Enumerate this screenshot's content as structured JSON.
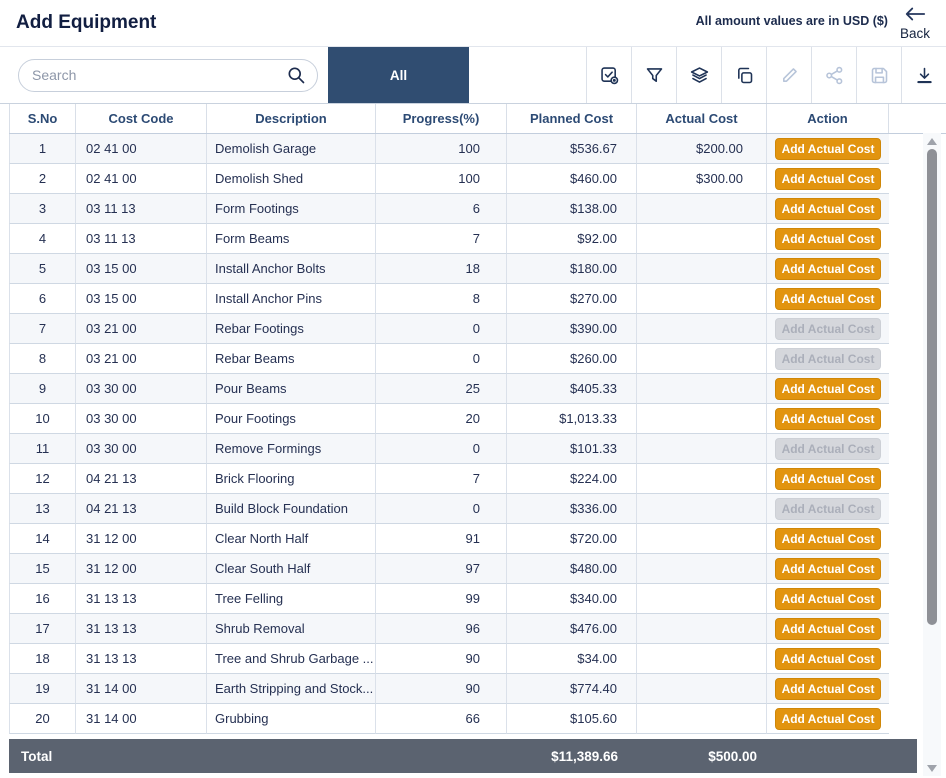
{
  "titlebar": {
    "title": "Add Equipment",
    "usd_note": "All amount values are in USD ($)",
    "back_label": "Back"
  },
  "toolbar": {
    "search_placeholder": "Search",
    "search_value": "",
    "tab_all_label": "All",
    "icons": [
      {
        "name": "select-check-icon",
        "enabled": true
      },
      {
        "name": "filter-icon",
        "enabled": true
      },
      {
        "name": "layers-icon",
        "enabled": true
      },
      {
        "name": "copy-icon",
        "enabled": true
      },
      {
        "name": "edit-icon",
        "enabled": false
      },
      {
        "name": "share-icon",
        "enabled": false
      },
      {
        "name": "save-icon",
        "enabled": false
      },
      {
        "name": "download-icon",
        "enabled": true
      }
    ]
  },
  "table": {
    "columns": [
      "S.No",
      "Cost Code",
      "Description",
      "Progress(%)",
      "Planned Cost",
      "Actual Cost",
      "Action"
    ],
    "action_button_label": "Add Actual Cost",
    "rows": [
      {
        "sno": "1",
        "cost_code": "02 41 00",
        "description": "Demolish Garage",
        "progress": "100",
        "planned_cost": "$536.67",
        "actual_cost": "$200.00",
        "action_enabled": true
      },
      {
        "sno": "2",
        "cost_code": "02 41 00",
        "description": "Demolish Shed",
        "progress": "100",
        "planned_cost": "$460.00",
        "actual_cost": "$300.00",
        "action_enabled": true
      },
      {
        "sno": "3",
        "cost_code": "03 11 13",
        "description": "Form Footings",
        "progress": "6",
        "planned_cost": "$138.00",
        "actual_cost": "",
        "action_enabled": true
      },
      {
        "sno": "4",
        "cost_code": "03 11 13",
        "description": "Form Beams",
        "progress": "7",
        "planned_cost": "$92.00",
        "actual_cost": "",
        "action_enabled": true
      },
      {
        "sno": "5",
        "cost_code": "03 15 00",
        "description": "Install Anchor Bolts",
        "progress": "18",
        "planned_cost": "$180.00",
        "actual_cost": "",
        "action_enabled": true
      },
      {
        "sno": "6",
        "cost_code": "03 15 00",
        "description": "Install Anchor Pins",
        "progress": "8",
        "planned_cost": "$270.00",
        "actual_cost": "",
        "action_enabled": true
      },
      {
        "sno": "7",
        "cost_code": "03 21 00",
        "description": "Rebar Footings",
        "progress": "0",
        "planned_cost": "$390.00",
        "actual_cost": "",
        "action_enabled": false
      },
      {
        "sno": "8",
        "cost_code": "03 21 00",
        "description": "Rebar Beams",
        "progress": "0",
        "planned_cost": "$260.00",
        "actual_cost": "",
        "action_enabled": false
      },
      {
        "sno": "9",
        "cost_code": "03 30 00",
        "description": "Pour Beams",
        "progress": "25",
        "planned_cost": "$405.33",
        "actual_cost": "",
        "action_enabled": true
      },
      {
        "sno": "10",
        "cost_code": "03 30 00",
        "description": "Pour Footings",
        "progress": "20",
        "planned_cost": "$1,013.33",
        "actual_cost": "",
        "action_enabled": true
      },
      {
        "sno": "11",
        "cost_code": "03 30 00",
        "description": "Remove Formings",
        "progress": "0",
        "planned_cost": "$101.33",
        "actual_cost": "",
        "action_enabled": false
      },
      {
        "sno": "12",
        "cost_code": "04 21 13",
        "description": "Brick Flooring",
        "progress": "7",
        "planned_cost": "$224.00",
        "actual_cost": "",
        "action_enabled": true
      },
      {
        "sno": "13",
        "cost_code": "04 21 13",
        "description": "Build Block Foundation",
        "progress": "0",
        "planned_cost": "$336.00",
        "actual_cost": "",
        "action_enabled": false
      },
      {
        "sno": "14",
        "cost_code": "31 12 00",
        "description": "Clear North Half",
        "progress": "91",
        "planned_cost": "$720.00",
        "actual_cost": "",
        "action_enabled": true
      },
      {
        "sno": "15",
        "cost_code": "31 12 00",
        "description": "Clear South Half",
        "progress": "97",
        "planned_cost": "$480.00",
        "actual_cost": "",
        "action_enabled": true
      },
      {
        "sno": "16",
        "cost_code": "31 13 13",
        "description": "Tree Felling",
        "progress": "99",
        "planned_cost": "$340.00",
        "actual_cost": "",
        "action_enabled": true
      },
      {
        "sno": "17",
        "cost_code": "31 13 13",
        "description": "Shrub Removal",
        "progress": "96",
        "planned_cost": "$476.00",
        "actual_cost": "",
        "action_enabled": true
      },
      {
        "sno": "18",
        "cost_code": "31 13 13",
        "description": "Tree and Shrub Garbage ...",
        "progress": "90",
        "planned_cost": "$34.00",
        "actual_cost": "",
        "action_enabled": true
      },
      {
        "sno": "19",
        "cost_code": "31 14 00",
        "description": "Earth Stripping and Stock...",
        "progress": "90",
        "planned_cost": "$774.40",
        "actual_cost": "",
        "action_enabled": true
      },
      {
        "sno": "20",
        "cost_code": "31 14 00",
        "description": "Grubbing",
        "progress": "66",
        "planned_cost": "$105.60",
        "actual_cost": "",
        "action_enabled": true
      }
    ],
    "total": {
      "label": "Total",
      "planned_cost": "$11,389.66",
      "actual_cost": "$500.00"
    }
  },
  "colors": {
    "accent_navy": "#304d71",
    "button_orange": "#e2940f",
    "button_disabled": "#d5d7dc",
    "total_row_bg": "#5b6370"
  }
}
